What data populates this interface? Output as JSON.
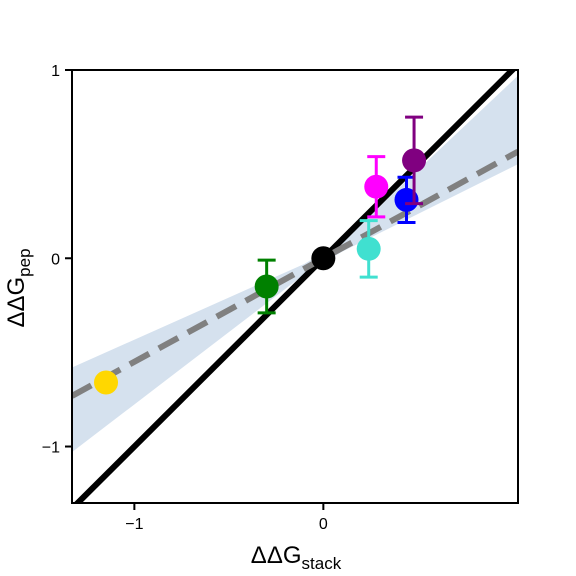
{
  "chart_data": {
    "type": "scatter",
    "title": "",
    "xlabel": {
      "main": "ΔΔG",
      "subscript": "stack"
    },
    "ylabel": {
      "main": "ΔΔG",
      "subscript": "pep"
    },
    "xlim": [
      -1.33,
      1.03
    ],
    "ylim": [
      -1.3,
      1.0
    ],
    "x_ticks": [
      -1,
      0
    ],
    "x_tick_labels": [
      "−1",
      "0"
    ],
    "y_ticks": [
      -1,
      0,
      1
    ],
    "y_tick_labels": [
      "−1",
      "0",
      "1"
    ],
    "grid": false,
    "legend": "none",
    "points": [
      {
        "x": -1.15,
        "y": -0.66,
        "yerr": 0.03,
        "color": "#ffd700"
      },
      {
        "x": -0.3,
        "y": -0.15,
        "yerr": 0.14,
        "color": "#008000"
      },
      {
        "x": 0.0,
        "y": 0.0,
        "yerr": 0.0,
        "color": "#000000"
      },
      {
        "x": 0.24,
        "y": 0.05,
        "yerr": 0.15,
        "color": "#40e0d0"
      },
      {
        "x": 0.28,
        "y": 0.38,
        "yerr": 0.16,
        "color": "#ff00ff"
      },
      {
        "x": 0.44,
        "y": 0.31,
        "yerr": 0.12,
        "color": "#0000ff"
      },
      {
        "x": 0.48,
        "y": 0.52,
        "yerr": 0.23,
        "color": "#800080"
      }
    ],
    "identity_line": {
      "slope": 1.0,
      "intercept": 0.0,
      "color": "#000000",
      "style": "solid"
    },
    "fit_line": {
      "slope": 0.55,
      "intercept": 0.0,
      "color": "#808080",
      "style": "dashed"
    },
    "confidence_band": {
      "color": "#d5e1ee",
      "x": [
        -1.33,
        -0.1,
        0.1,
        1.03
      ],
      "lower": [
        -1.03,
        -0.085,
        0.035,
        0.5
      ],
      "upper": [
        -0.58,
        -0.03,
        0.09,
        0.97
      ]
    }
  }
}
